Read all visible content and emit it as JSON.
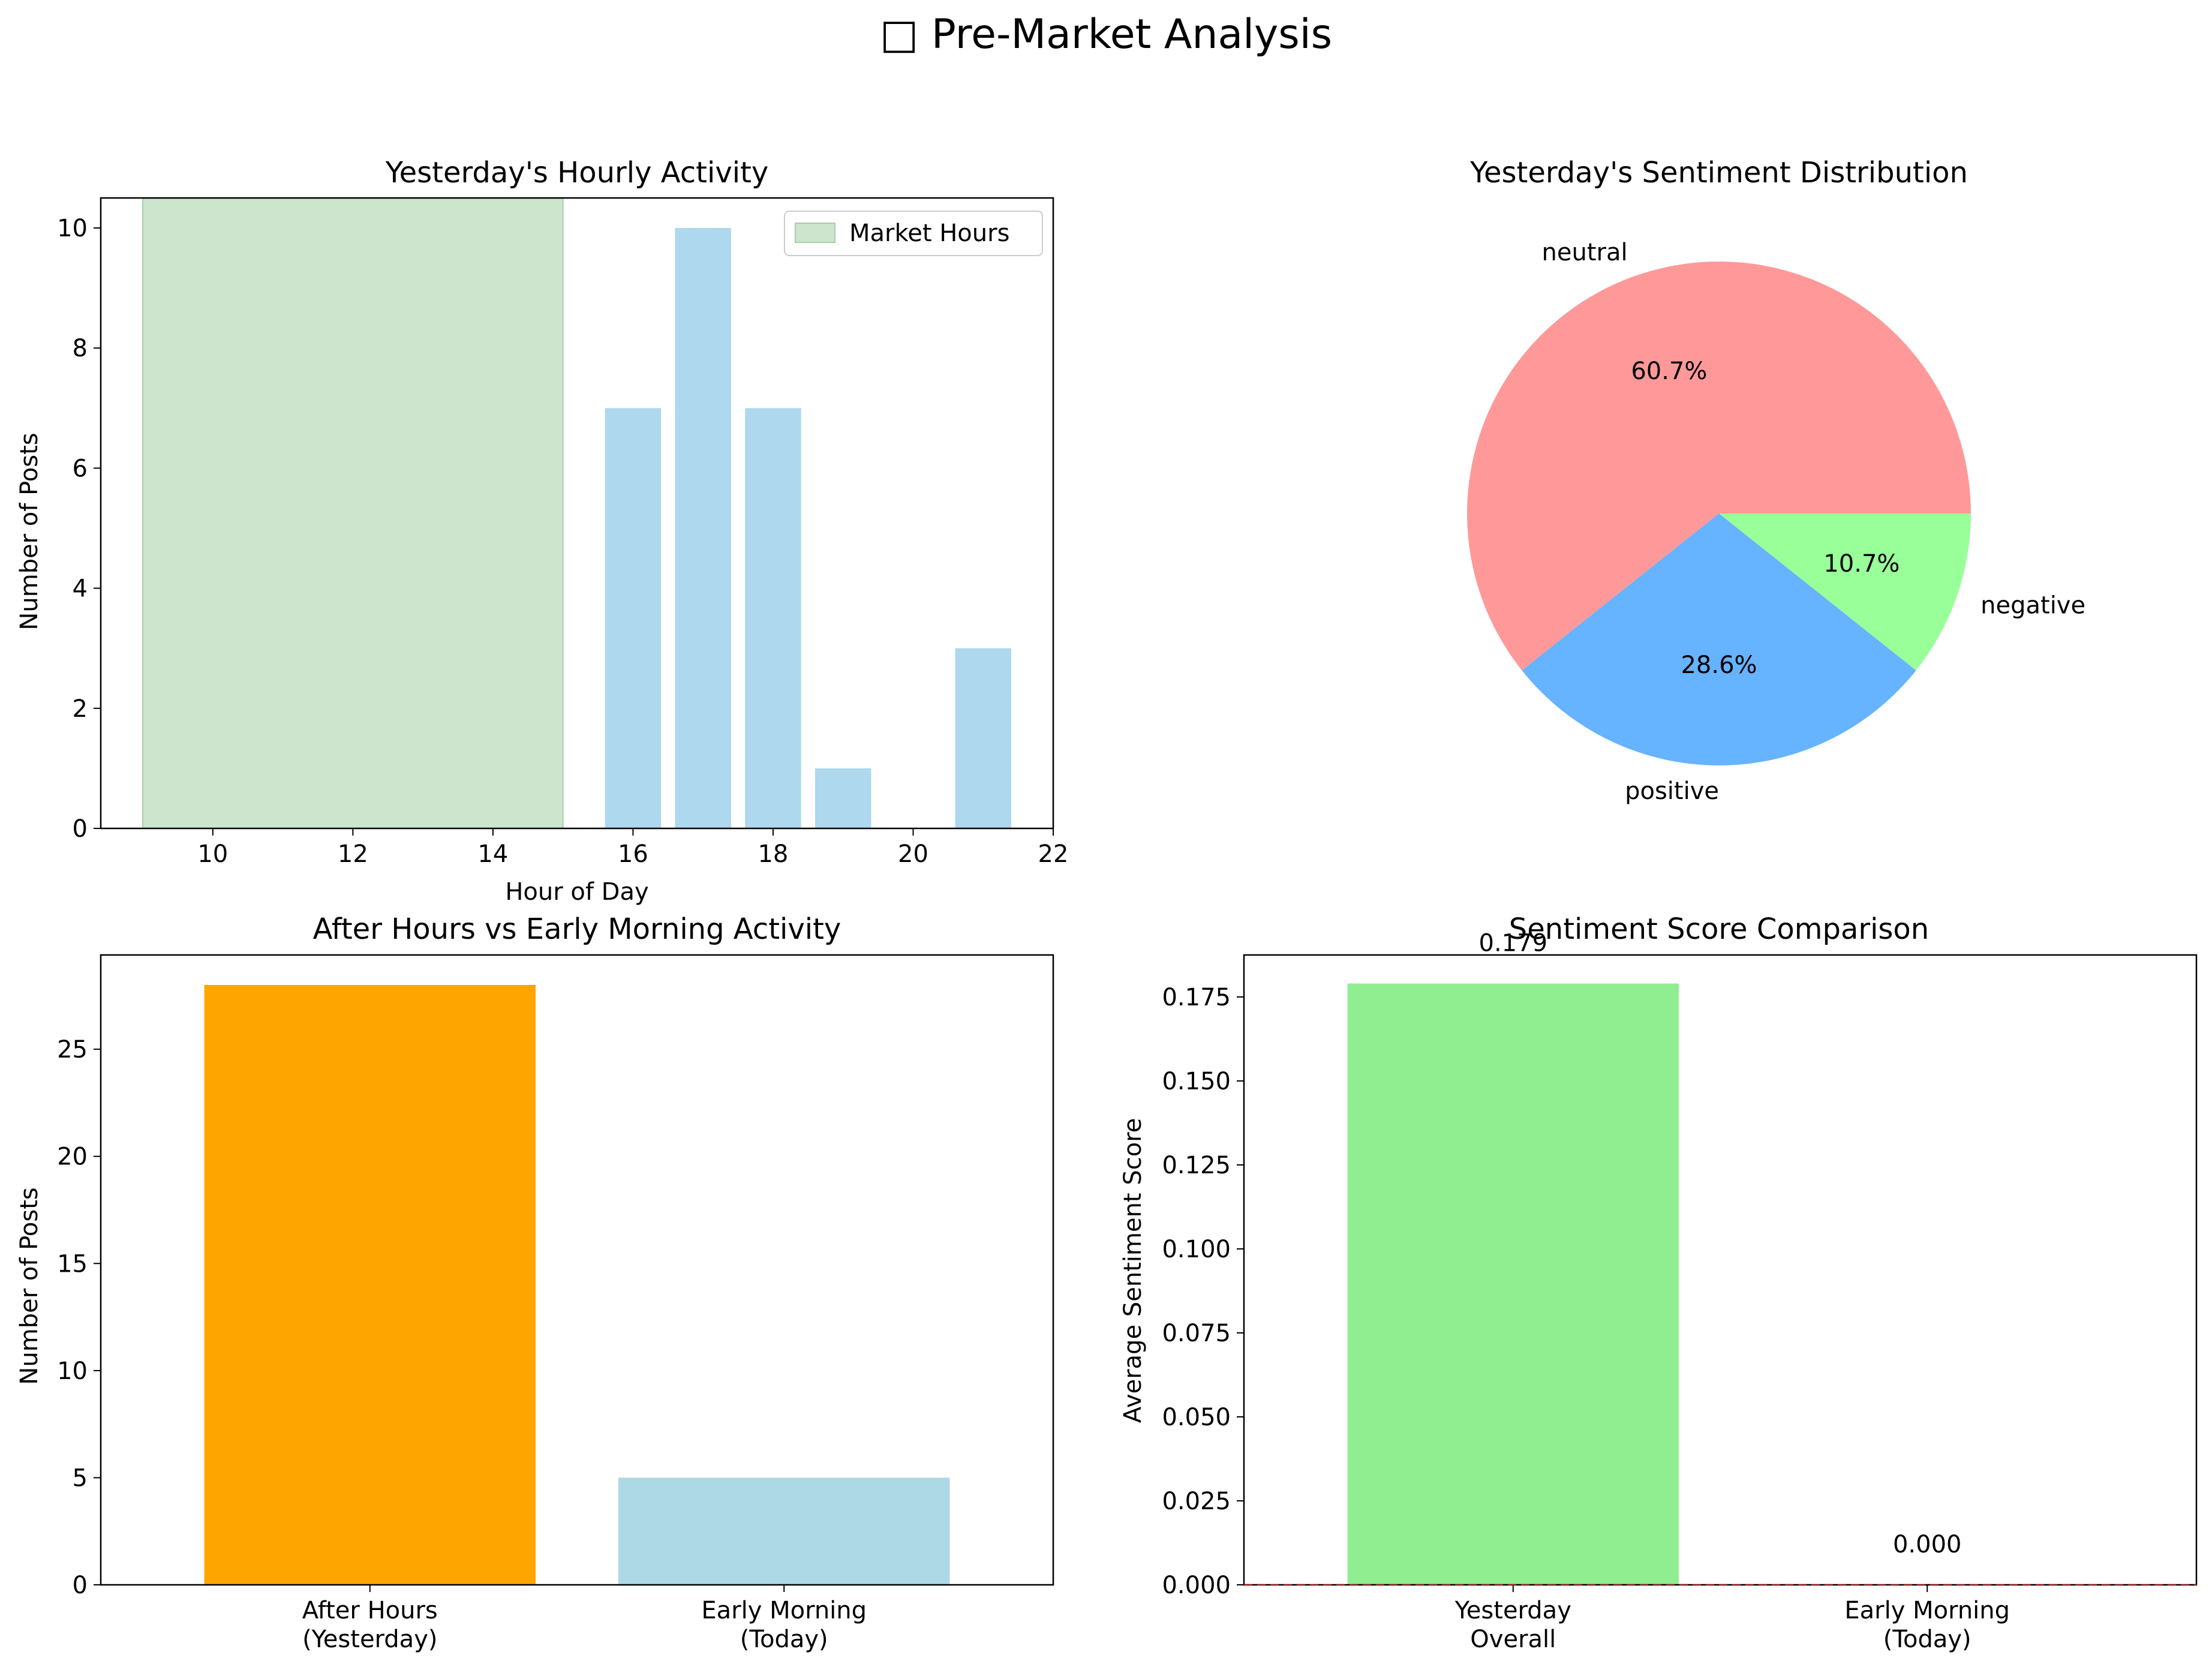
{
  "figure": {
    "title": "□ Pre-Market Analysis"
  },
  "chart_data": [
    {
      "type": "bar",
      "title": "Yesterday's Hourly Activity",
      "xlabel": "Hour of Day",
      "ylabel": "Number of Posts",
      "x": [
        16,
        17,
        18,
        19,
        21
      ],
      "values": [
        7,
        10,
        7,
        1,
        3
      ],
      "color": "#add8ee",
      "xlim": [
        8.4,
        22
      ],
      "ylim": [
        0,
        10.5
      ],
      "xticks": [
        "10",
        "12",
        "14",
        "16",
        "18",
        "20",
        "22"
      ],
      "yticks": [
        "0",
        "2",
        "4",
        "6",
        "8",
        "10"
      ],
      "shaded_span": {
        "label": "Market Hours",
        "x": [
          9,
          15
        ],
        "color": "#cce5cc"
      },
      "legend": {
        "position": "top-right",
        "entries": [
          "Market Hours"
        ]
      }
    },
    {
      "type": "pie",
      "title": "Yesterday's Sentiment Distribution",
      "slices": [
        {
          "label": "neutral",
          "value": 60.7,
          "pct_label": "60.7%",
          "color": "#ff9999"
        },
        {
          "label": "positive",
          "value": 28.6,
          "pct_label": "28.6%",
          "color": "#66b3ff"
        },
        {
          "label": "negative",
          "value": 10.7,
          "pct_label": "10.7%",
          "color": "#99ff99"
        }
      ]
    },
    {
      "type": "bar",
      "title": "After Hours vs Early Morning Activity",
      "xlabel": "",
      "ylabel": "Number of Posts",
      "categories": [
        "After Hours\n(Yesterday)",
        "Early Morning\n(Today)"
      ],
      "values": [
        28,
        5
      ],
      "colors": [
        "#ffa500",
        "#add8e6"
      ],
      "ylim": [
        0,
        29.4
      ],
      "yticks": [
        "0",
        "5",
        "10",
        "15",
        "20",
        "25"
      ]
    },
    {
      "type": "bar",
      "title": "Sentiment Score Comparison",
      "xlabel": "",
      "ylabel": "Average Sentiment Score",
      "categories": [
        "Yesterday\nOverall",
        "Early Morning\n(Today)"
      ],
      "values": [
        0.179,
        0.0
      ],
      "value_labels": [
        "0.179",
        "0.000"
      ],
      "colors": [
        "#90ee90",
        "#add8e6"
      ],
      "ylim": [
        0,
        0.1875
      ],
      "yticks": [
        "0.000",
        "0.025",
        "0.050",
        "0.075",
        "0.100",
        "0.125",
        "0.150",
        "0.175"
      ],
      "reference_line": {
        "y": 0,
        "style": "dashed",
        "color": "#d62728"
      }
    }
  ]
}
